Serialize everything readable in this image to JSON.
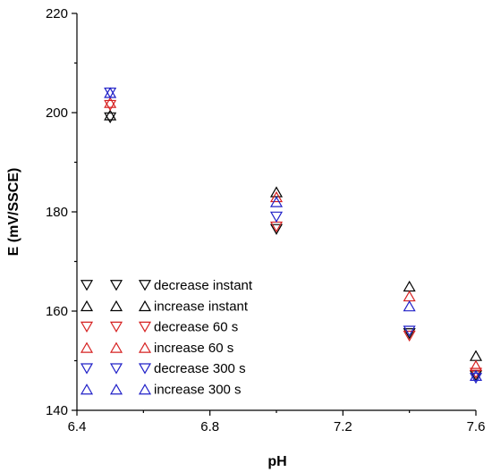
{
  "chart_data": {
    "type": "scatter",
    "xlabel": "pH",
    "ylabel": "E (mV/SSCE)",
    "xlim": [
      6.4,
      7.6
    ],
    "ylim": [
      140,
      220
    ],
    "xticks": [
      "6.4",
      "6.8",
      "7.2",
      "7.6"
    ],
    "yticks": [
      "140",
      "160",
      "180",
      "200",
      "220"
    ],
    "grid": false,
    "legend_position": "bottom-left",
    "series": [
      {
        "name": "decrease instant",
        "marker": "triangle-down",
        "color": "#000000",
        "points": [
          [
            6.5,
            199
          ],
          [
            7.0,
            176.5
          ],
          [
            7.4,
            155.5
          ],
          [
            7.6,
            147
          ]
        ]
      },
      {
        "name": "increase instant",
        "marker": "triangle-up",
        "color": "#000000",
        "points": [
          [
            6.5,
            199.5
          ],
          [
            7.0,
            184
          ],
          [
            7.4,
            165
          ],
          [
            7.6,
            151
          ]
        ]
      },
      {
        "name": "decrease 60 s",
        "marker": "triangle-down",
        "color": "#d62020",
        "points": [
          [
            6.5,
            201.5
          ],
          [
            7.0,
            177
          ],
          [
            7.4,
            155
          ],
          [
            7.6,
            147.5
          ]
        ]
      },
      {
        "name": "increase 60 s",
        "marker": "triangle-up",
        "color": "#d62020",
        "points": [
          [
            6.5,
            202
          ],
          [
            7.0,
            183
          ],
          [
            7.4,
            163
          ],
          [
            7.6,
            149
          ]
        ]
      },
      {
        "name": "decrease 300 s",
        "marker": "triangle-down",
        "color": "#2020c8",
        "points": [
          [
            6.5,
            204
          ],
          [
            7.0,
            179
          ],
          [
            7.4,
            156
          ],
          [
            7.6,
            146.5
          ]
        ]
      },
      {
        "name": "increase 300 s",
        "marker": "triangle-up",
        "color": "#2020c8",
        "points": [
          [
            6.5,
            204
          ],
          [
            7.0,
            182
          ],
          [
            7.4,
            161
          ],
          [
            7.6,
            147
          ]
        ]
      }
    ]
  }
}
